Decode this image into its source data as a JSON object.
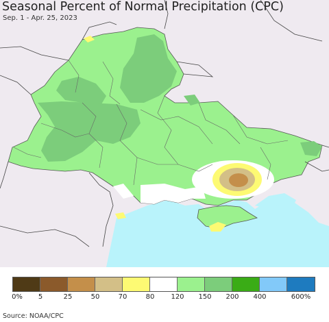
{
  "title": "Seasonal Percent of Normal Precipitation (CPC)",
  "subtitle": "Sep. 1 - Apr. 25, 2023",
  "source": "Source: NOAA/CPC",
  "legend": {
    "colors": [
      "#4f3a16",
      "#8b5a2b",
      "#c48f4a",
      "#d3bf87",
      "#fdfa73",
      "#ffffff",
      "#9bf18e",
      "#7ccd7b",
      "#3aac16",
      "#82c9f9",
      "#1e7bbf"
    ],
    "labels": [
      "0%",
      "5",
      "25",
      "50",
      "70",
      "80",
      "120",
      "150",
      "200",
      "400",
      "600%"
    ]
  },
  "colors": {
    "land_neighbor": "#efeaf0",
    "sea": "#b9f3fb",
    "green_light": "#9bf18e",
    "green_mid": "#7ccd7b",
    "yellow": "#fdfa73",
    "tan": "#d3bf87",
    "brown": "#c48f4a"
  }
}
